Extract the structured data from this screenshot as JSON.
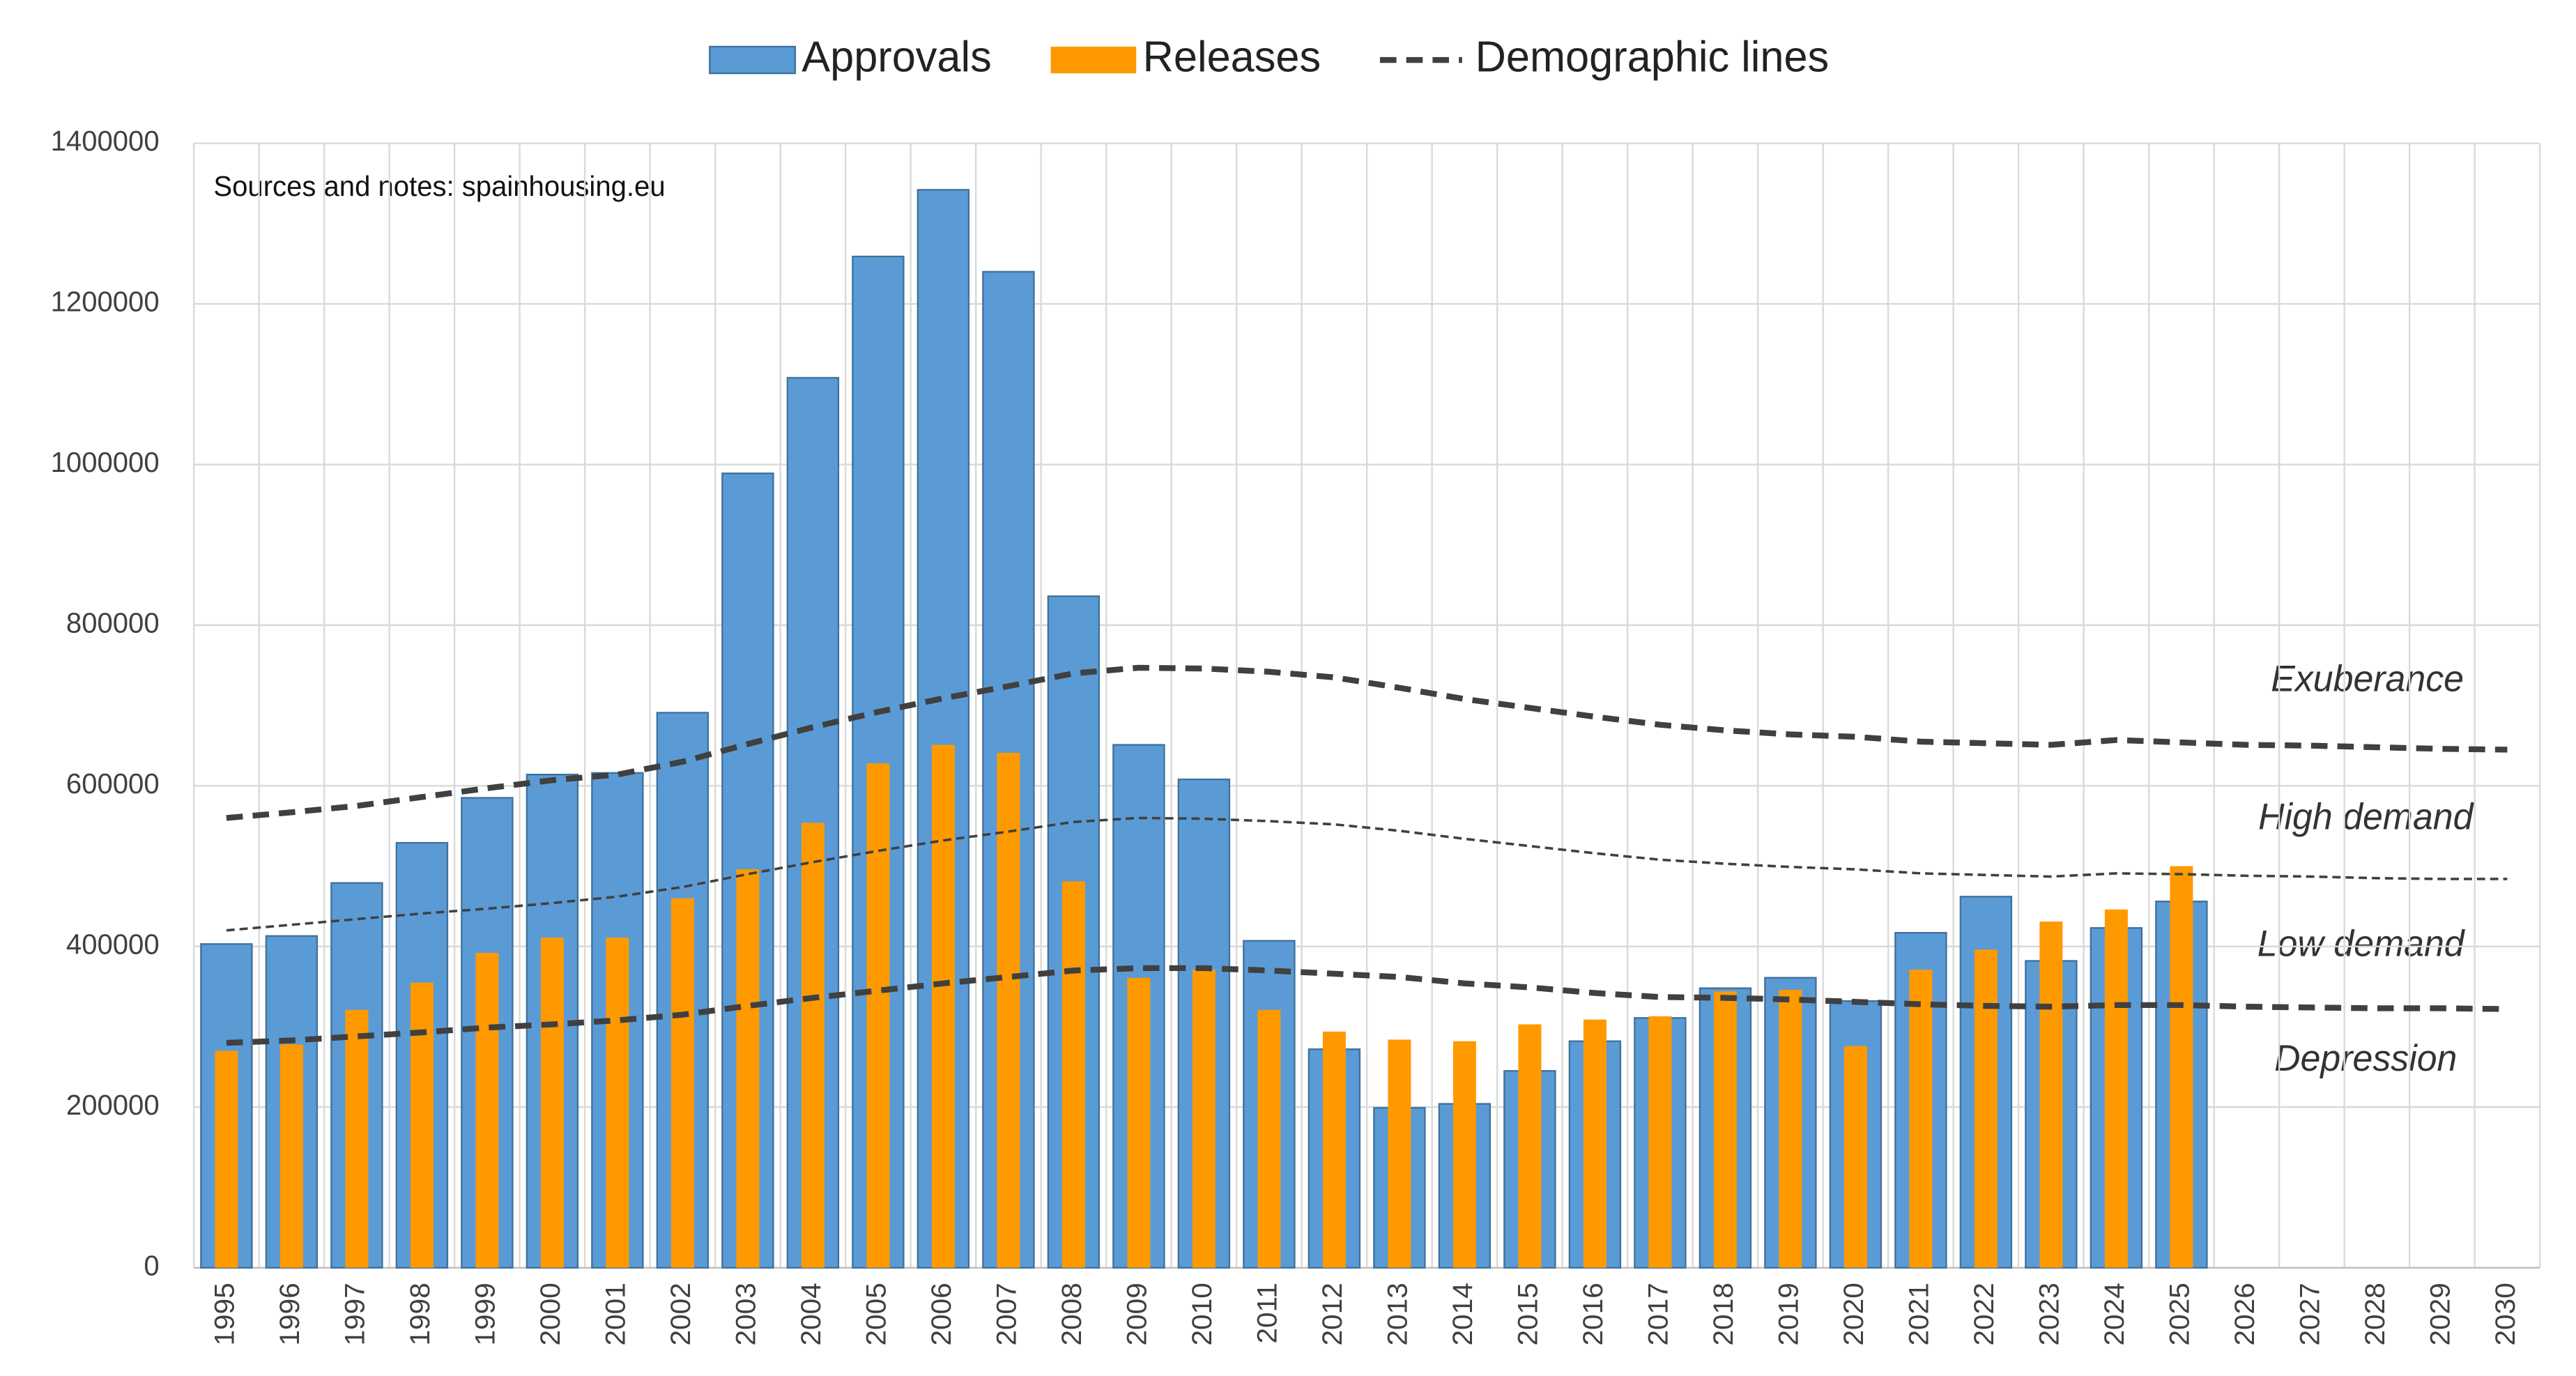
{
  "chart_data": {
    "type": "bar",
    "note": "Sources and notes: spainhousing.eu",
    "categories": [
      "1995",
      "1996",
      "1997",
      "1998",
      "1999",
      "2000",
      "2001",
      "2002",
      "2003",
      "2004",
      "2005",
      "2006",
      "2007",
      "2008",
      "2009",
      "2010",
      "2011",
      "2012",
      "2013",
      "2014",
      "2015",
      "2016",
      "2017",
      "2018",
      "2019",
      "2020",
      "2021",
      "2022",
      "2023",
      "2024",
      "2025",
      "2026",
      "2027",
      "2028",
      "2029",
      "2030"
    ],
    "series": [
      {
        "name": "Approvals",
        "color": "#5b9bd5",
        "values": [
          403000,
          413000,
          479000,
          529000,
          585000,
          614000,
          616000,
          691000,
          989000,
          1108000,
          1259000,
          1342000,
          1240000,
          836000,
          651000,
          608000,
          407000,
          272000,
          199000,
          204000,
          245000,
          282000,
          311000,
          348000,
          361000,
          332000,
          417000,
          462000,
          382000,
          423000,
          456000,
          null,
          null,
          null,
          null,
          null
        ]
      },
      {
        "name": "Releases",
        "color": "#ff9900",
        "values": [
          270000,
          278000,
          321000,
          355000,
          392000,
          411000,
          411000,
          460000,
          496000,
          554000,
          628000,
          651000,
          641000,
          481000,
          361000,
          371000,
          321000,
          294000,
          284000,
          282000,
          303000,
          309000,
          313000,
          344000,
          346000,
          276000,
          371000,
          396000,
          431000,
          446000,
          500000,
          null,
          null,
          null,
          null,
          null
        ]
      }
    ],
    "demographic_lines": {
      "name": "Demographic lines",
      "color": "#404040",
      "lines": [
        {
          "style": "thick",
          "values": [
            560000,
            567000,
            575000,
            586000,
            597000,
            607000,
            614000,
            630000,
            652000,
            673000,
            692000,
            709000,
            724000,
            740000,
            747000,
            746000,
            742000,
            735000,
            722000,
            708000,
            697000,
            686000,
            676000,
            669000,
            664000,
            661000,
            655000,
            653000,
            651000,
            657000,
            654000,
            651000,
            650000,
            648000,
            646000,
            645000
          ]
        },
        {
          "style": "thin",
          "values": [
            420000,
            427000,
            434000,
            441000,
            447000,
            454000,
            462000,
            474000,
            490000,
            505000,
            519000,
            532000,
            543000,
            555000,
            560000,
            559000,
            556000,
            552000,
            544000,
            534000,
            525000,
            516000,
            508000,
            503000,
            499000,
            496000,
            491000,
            489000,
            487000,
            491000,
            490000,
            488000,
            487000,
            485000,
            484000,
            484000
          ]
        },
        {
          "style": "thick",
          "values": [
            280000,
            283000,
            288000,
            293000,
            299000,
            303000,
            308000,
            315000,
            326000,
            336000,
            345000,
            354000,
            362000,
            370000,
            373000,
            373000,
            370000,
            366000,
            362000,
            354000,
            349000,
            342000,
            337000,
            336000,
            334000,
            331000,
            328000,
            326000,
            325000,
            327000,
            327000,
            325000,
            324000,
            323000,
            323000,
            322000
          ]
        }
      ]
    },
    "annotations": [
      "Exuberance",
      "High demand",
      "Low demand",
      "Depression"
    ],
    "ylim": [
      0,
      1400000
    ],
    "yticks": [
      0,
      200000,
      400000,
      600000,
      800000,
      1000000,
      1200000,
      1400000
    ],
    "grid": true
  }
}
